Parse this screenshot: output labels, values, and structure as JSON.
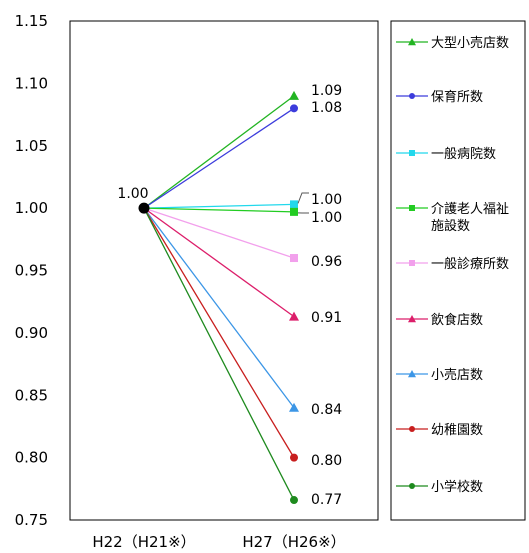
{
  "chart_data": {
    "type": "line",
    "title": "",
    "xlabel": "",
    "ylabel": "",
    "categories": [
      "H22（H21※）",
      "H27（H26※）"
    ],
    "ylim": [
      0.75,
      1.15
    ],
    "yticks": [
      "0.75",
      "0.80",
      "0.85",
      "0.90",
      "0.95",
      "1.00",
      "1.05",
      "1.10",
      "1.15"
    ],
    "grid": false,
    "legend_position": "right",
    "start_label": "1.00",
    "series": [
      {
        "name": "大型小売店数",
        "values": [
          1.0,
          1.09
        ],
        "label": "1.09",
        "color": "#22b422",
        "marker": "triangle"
      },
      {
        "name": "保育所数",
        "values": [
          1.0,
          1.08
        ],
        "label": "1.08",
        "color": "#3c3cdc",
        "marker": "circle"
      },
      {
        "name": "一般病院数",
        "values": [
          1.0,
          1.003
        ],
        "label": "1.00",
        "color": "#22d8ec",
        "marker": "square"
      },
      {
        "name": "介護老人福祉施設数",
        "values": [
          1.0,
          0.997
        ],
        "label": "1.00",
        "color": "#22cc22",
        "marker": "square"
      },
      {
        "name": "一般診療所数",
        "values": [
          1.0,
          0.96
        ],
        "label": "0.96",
        "color": "#f2a0ec",
        "marker": "square"
      },
      {
        "name": "飲食店数",
        "values": [
          1.0,
          0.913
        ],
        "label": "0.91",
        "color": "#dc1e6a",
        "marker": "triangle"
      },
      {
        "name": "小売店数",
        "values": [
          1.0,
          0.84
        ],
        "label": "0.84",
        "color": "#3c96e6",
        "marker": "triangle"
      },
      {
        "name": "幼稚園数",
        "values": [
          1.0,
          0.8
        ],
        "label": "0.80",
        "color": "#c81e1e",
        "marker": "circle"
      },
      {
        "name": "小学校数",
        "values": [
          1.0,
          0.766
        ],
        "label": "0.77",
        "color": "#1e8a1e",
        "marker": "circle"
      }
    ],
    "legend_lines": [
      [
        "大型小売店数"
      ],
      [
        "保育所数"
      ],
      [
        "一般病院数"
      ],
      [
        "介護老人福祉",
        "施設数"
      ],
      [
        "一般診療所数"
      ],
      [
        "飲食店数"
      ],
      [
        "小売店数"
      ],
      [
        "幼稚園数"
      ],
      [
        "小学校数"
      ]
    ]
  }
}
